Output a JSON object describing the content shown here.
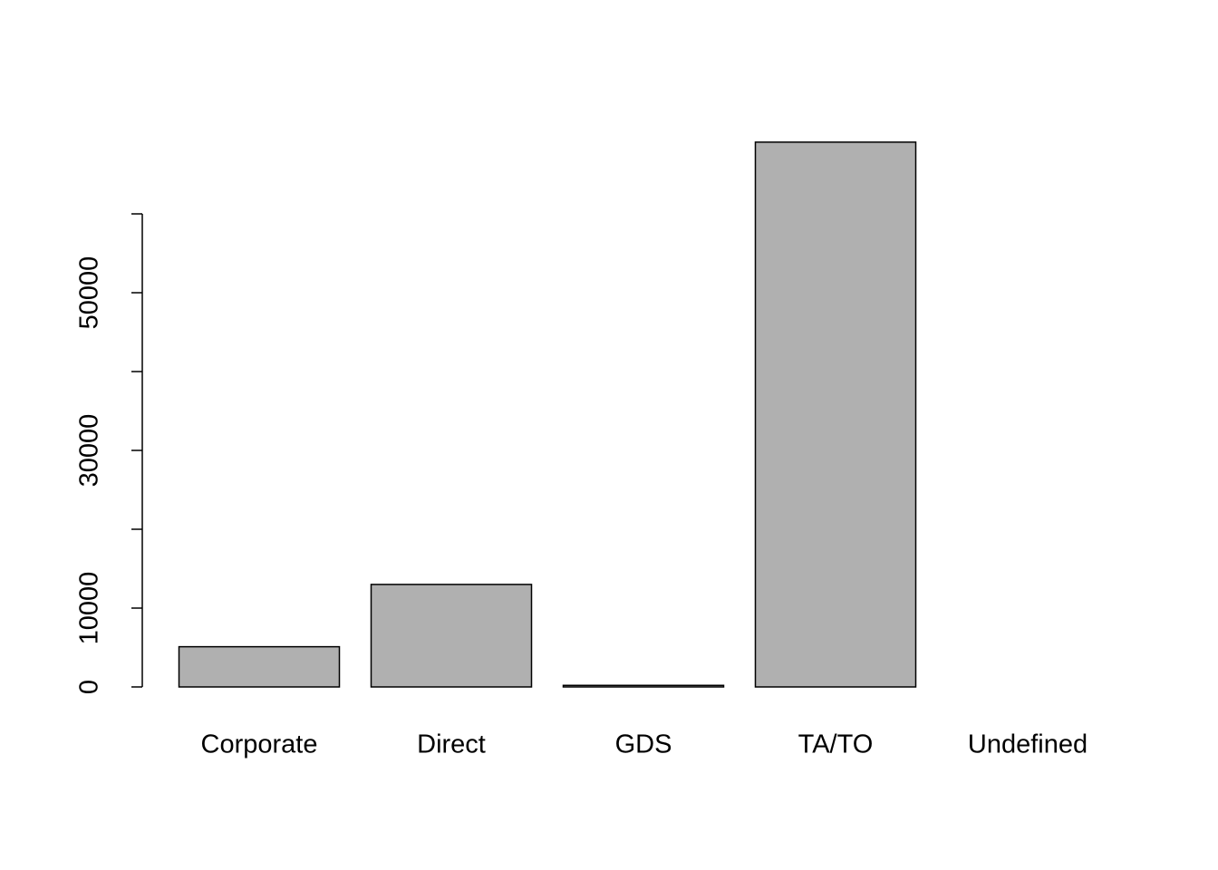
{
  "chart_data": {
    "type": "bar",
    "categories": [
      "Corporate",
      "Direct",
      "GDS",
      "TA/TO",
      "Undefined"
    ],
    "values": [
      5100,
      13000,
      200,
      69100,
      0
    ],
    "color": "#b0b0b0",
    "ylim": [
      0,
      72000
    ],
    "yticks": [
      0,
      10000,
      30000,
      50000
    ],
    "yticks_minor": [
      20000,
      40000,
      60000
    ]
  }
}
